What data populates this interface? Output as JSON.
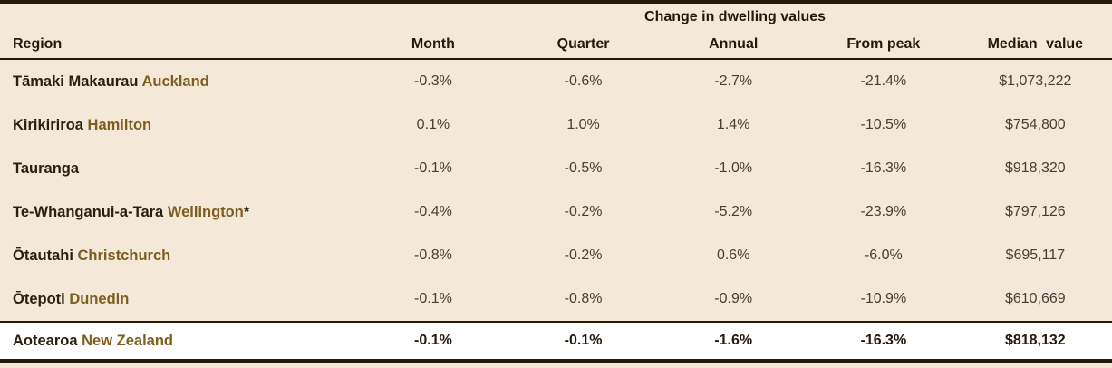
{
  "table": {
    "span_header": "Change in dwelling values",
    "columns": [
      "Region",
      "Month",
      "Quarter",
      "Annual",
      "From peak",
      "Median value"
    ],
    "rows": [
      {
        "maori": "Tāmaki Makaurau",
        "english": "Auckland",
        "suffix": "",
        "month": "-0.3%",
        "quarter": "-0.6%",
        "annual": "-2.7%",
        "from_peak": "-21.4%",
        "median_value": "$1,073,222"
      },
      {
        "maori": "Kirikiriroa",
        "english": "Hamilton",
        "suffix": "",
        "month": "0.1%",
        "quarter": "1.0%",
        "annual": "1.4%",
        "from_peak": "-10.5%",
        "median_value": "$754,800"
      },
      {
        "maori": "",
        "english": "",
        "region_plain": "Tauranga",
        "suffix": "",
        "month": "-0.1%",
        "quarter": "-0.5%",
        "annual": "-1.0%",
        "from_peak": "-16.3%",
        "median_value": "$918,320"
      },
      {
        "maori": "Te-Whanganui-a-Tara",
        "english": "Wellington",
        "suffix": "*",
        "month": "-0.4%",
        "quarter": "-0.2%",
        "annual": "-5.2%",
        "from_peak": "-23.9%",
        "median_value": "$797,126"
      },
      {
        "maori": "Ōtautahi",
        "english": "Christchurch",
        "suffix": "",
        "month": "-0.8%",
        "quarter": "-0.2%",
        "annual": "0.6%",
        "from_peak": "-6.0%",
        "median_value": "$695,117"
      },
      {
        "maori": "Ōtepoti",
        "english": "Dunedin",
        "suffix": "",
        "month": "-0.1%",
        "quarter": "-0.8%",
        "annual": "-0.9%",
        "from_peak": "-10.9%",
        "median_value": "$610,669"
      }
    ],
    "total": {
      "maori": "Aotearoa",
      "english": "New Zealand",
      "suffix": "",
      "month": "-0.1%",
      "quarter": "-0.1%",
      "annual": "-1.6%",
      "from_peak": "-16.3%",
      "median_value": "$818,132"
    },
    "colors": {
      "background": "#f4e9d9",
      "rule_dark": "#231a0c",
      "maori_text": "#2b2010",
      "english_text": "#7d5e1e",
      "value_text": "#464036",
      "total_row_background": "#ffffff"
    }
  }
}
